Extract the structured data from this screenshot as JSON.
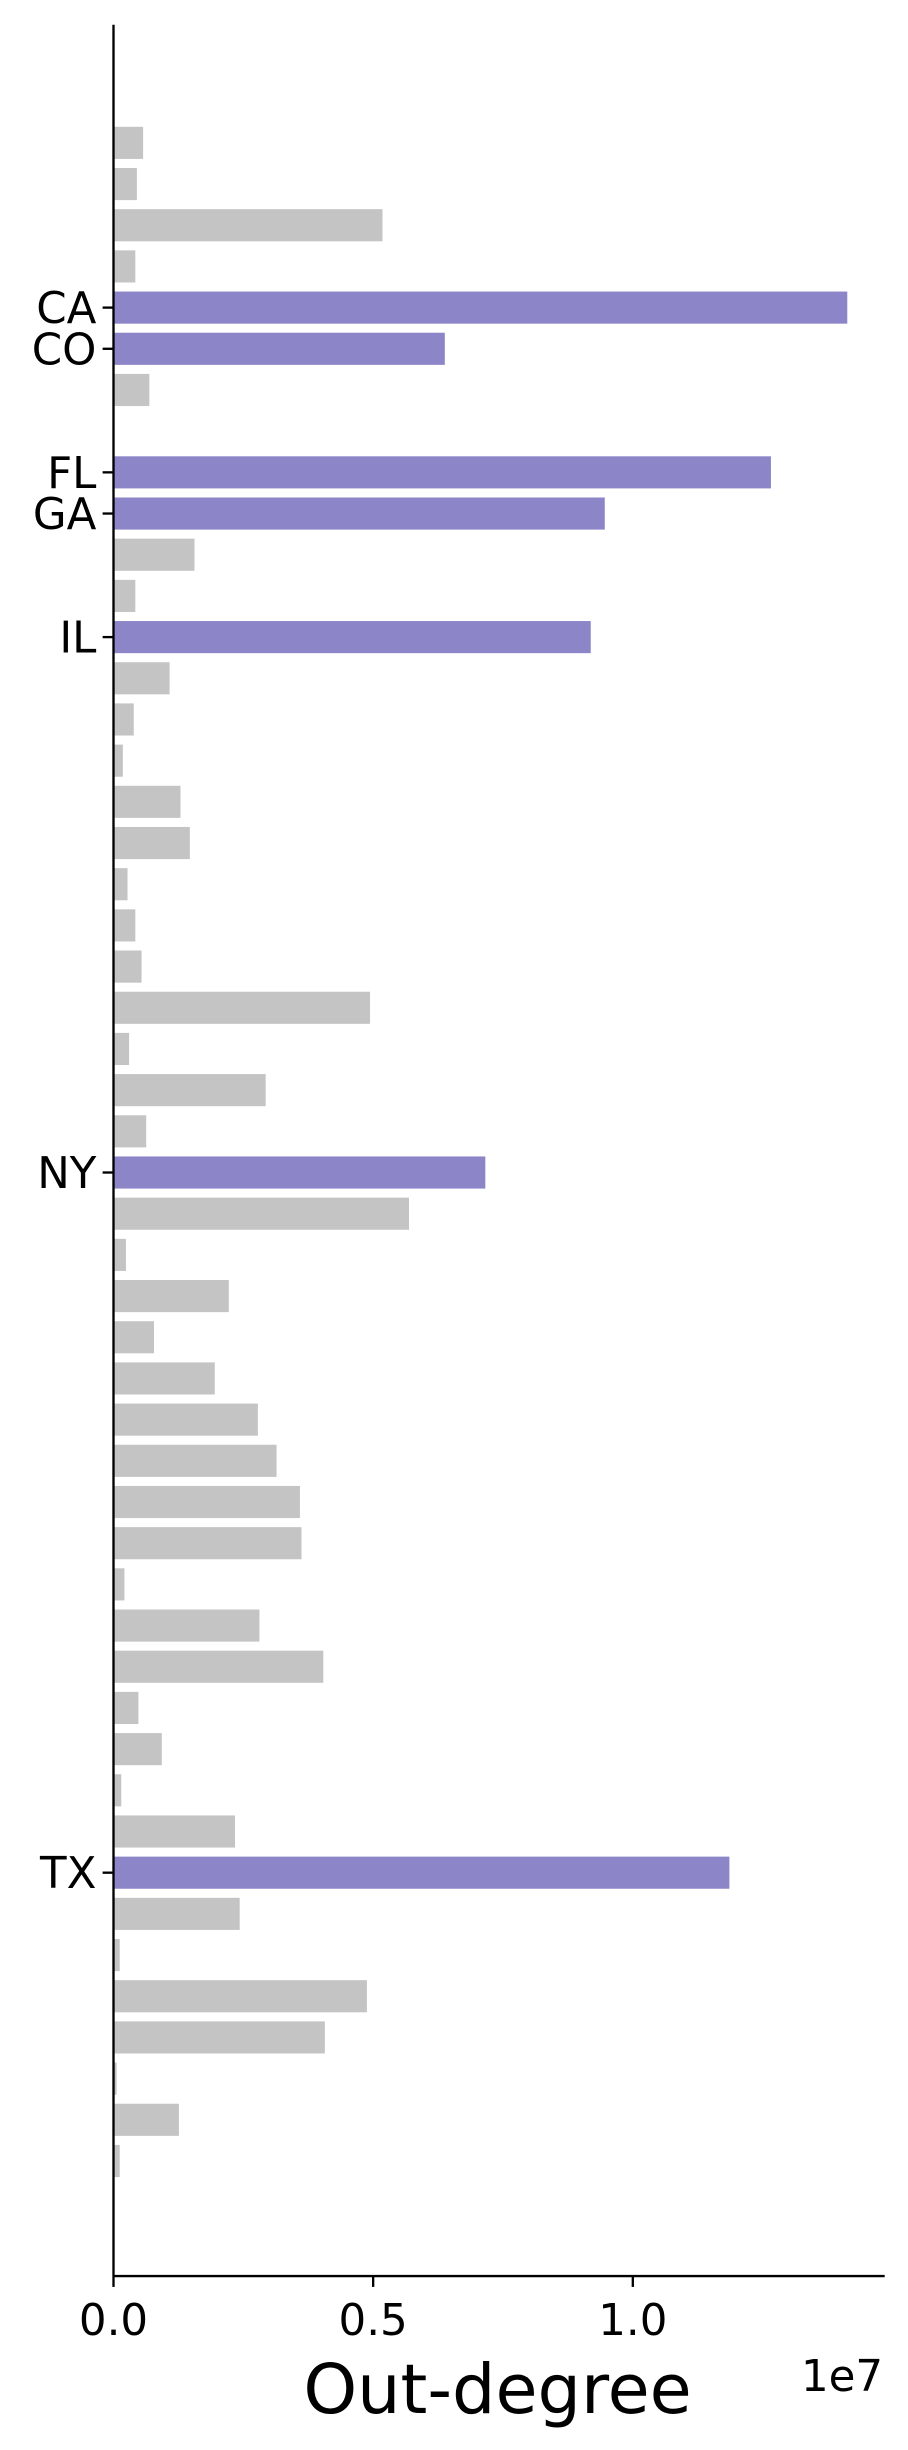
{
  "chart_data": {
    "type": "barh",
    "xlabel": "Out-degree",
    "offset_text": "1e7",
    "color": "#c4c4c4",
    "highlight_color": "#8c86c8",
    "categories": [
      null,
      null,
      null,
      null,
      "CA",
      "CO",
      null,
      null,
      "FL",
      "GA",
      null,
      null,
      "IL",
      null,
      null,
      null,
      null,
      null,
      null,
      null,
      null,
      null,
      null,
      null,
      null,
      "NY",
      null,
      null,
      null,
      null,
      null,
      null,
      null,
      null,
      null,
      null,
      null,
      null,
      null,
      null,
      null,
      null,
      "TX",
      null,
      null,
      null,
      null,
      null,
      null,
      null
    ],
    "values": [
      0.057,
      0.045,
      0.518,
      0.042,
      1.413,
      0.638,
      0.069,
      0,
      1.266,
      0.946,
      0.156,
      0.042,
      0.919,
      0.108,
      0.039,
      0.018,
      0.129,
      0.147,
      0.027,
      0.042,
      0.054,
      0.494,
      0.03,
      0.293,
      0.063,
      0.716,
      0.569,
      0.024,
      0.222,
      0.078,
      0.195,
      0.278,
      0.314,
      0.359,
      0.362,
      0.021,
      0.281,
      0.404,
      0.048,
      0.093,
      0.015,
      0.234,
      1.186,
      0.243,
      0.012,
      0.488,
      0.407,
      0.006,
      0.126,
      0.012
    ],
    "xlim": [
      0,
      1.485
    ],
    "xticks": [
      {
        "value": 0,
        "label": "0.0"
      },
      {
        "value": 0.5,
        "label": "0.5"
      },
      {
        "value": 1,
        "label": "1.0"
      }
    ]
  }
}
